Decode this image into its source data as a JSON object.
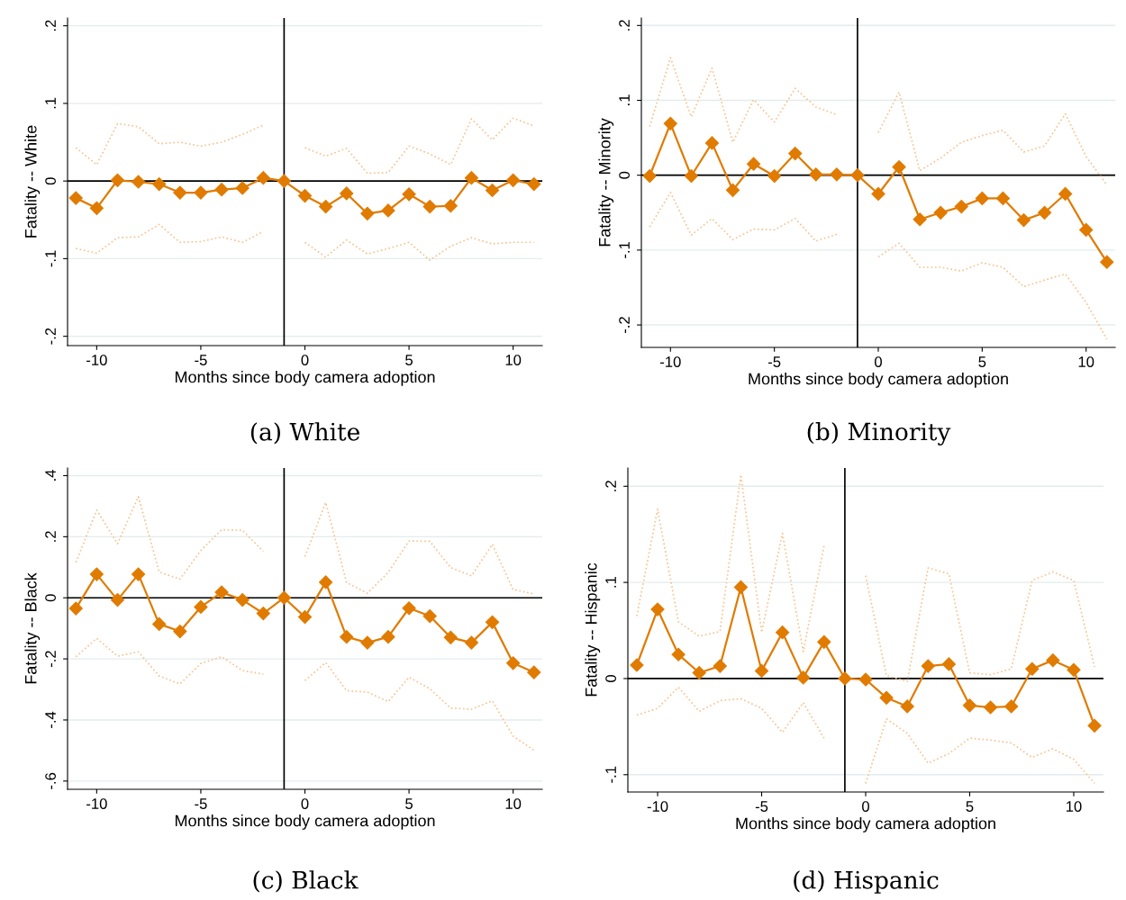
{
  "chart_data": [
    {
      "type": "line",
      "title": "(a) White",
      "xlabel": "Months since body camera adoption",
      "ylabel": "Fatality -- White",
      "x": [
        -11,
        -10,
        -9,
        -8,
        -7,
        -6,
        -5,
        -4,
        -3,
        -2,
        -1,
        0,
        1,
        2,
        3,
        4,
        5,
        6,
        7,
        8,
        9,
        10,
        11
      ],
      "series": [
        {
          "color": "#e07b00",
          "marker": "diamond",
          "line_style": "solid",
          "values": [
            -0.022,
            -0.035,
            0.001,
            -0.001,
            -0.004,
            -0.015,
            -0.015,
            -0.011,
            -0.009,
            0.004,
            0,
            -0.019,
            -0.033,
            -0.016,
            -0.042,
            -0.038,
            -0.017,
            -0.033,
            -0.032,
            0.004,
            -0.012,
            0.001,
            -0.004
          ]
        },
        {
          "color": "#f5c28e",
          "marker": "none",
          "line_style": "dotted",
          "values": [
            0.043,
            0.021,
            0.074,
            0.07,
            0.048,
            0.05,
            0.045,
            0.05,
            0.06,
            0.072,
            null,
            0.043,
            0.032,
            0.042,
            0.01,
            0.011,
            0.045,
            0.035,
            0.021,
            0.08,
            0.053,
            0.081,
            0.071
          ]
        },
        {
          "color": "#f5c28e",
          "marker": "none",
          "line_style": "dotted",
          "values": [
            -0.087,
            -0.093,
            -0.073,
            -0.072,
            -0.056,
            -0.079,
            -0.078,
            -0.072,
            -0.079,
            -0.065,
            null,
            -0.079,
            -0.098,
            -0.076,
            -0.094,
            -0.087,
            -0.079,
            -0.102,
            -0.084,
            -0.073,
            -0.081,
            -0.079,
            -0.079
          ]
        }
      ],
      "xlim": [
        -11.4,
        11.4
      ],
      "xticks": [
        -10,
        -5,
        0,
        5,
        10
      ],
      "ylim": [
        -0.212,
        0.21
      ],
      "yticks": [
        {
          "value": -0.2,
          "label": "-.2"
        },
        {
          "value": -0.1,
          "label": "-.1"
        },
        0,
        {
          "value": 0.1,
          "label": ".1"
        },
        {
          "value": 0.2,
          "label": ".2"
        }
      ],
      "ref_lines": [
        {
          "axis": "y",
          "value": 0,
          "color": "#000000"
        },
        {
          "axis": "x",
          "value": -1,
          "color": "#000000"
        }
      ],
      "grid": "y"
    },
    {
      "type": "line",
      "title": "(b) Minority",
      "xlabel": "Months since body camera adoption",
      "ylabel": "Fatality -- Minority",
      "x": [
        -11,
        -10,
        -9,
        -8,
        -7,
        -6,
        -5,
        -4,
        -3,
        -2,
        -1,
        0,
        1,
        2,
        3,
        4,
        5,
        6,
        7,
        8,
        9,
        10,
        11
      ],
      "series": [
        {
          "color": "#e07b00",
          "marker": "diamond",
          "line_style": "solid",
          "values": [
            -0.001,
            0.069,
            -0.001,
            0.043,
            -0.02,
            0.015,
            -0.001,
            0.029,
            0.001,
            0.001,
            0,
            -0.025,
            0.011,
            -0.059,
            -0.05,
            -0.042,
            -0.031,
            -0.031,
            -0.06,
            -0.05,
            -0.025,
            -0.073,
            -0.116
          ]
        },
        {
          "color": "#f5c28e",
          "marker": "none",
          "line_style": "dotted",
          "values": [
            0.065,
            0.157,
            0.078,
            0.143,
            0.044,
            0.101,
            0.071,
            0.116,
            0.091,
            0.081,
            null,
            0.057,
            0.111,
            0.006,
            0.023,
            0.044,
            0.053,
            0.06,
            0.031,
            0.039,
            0.082,
            0.025,
            -0.013
          ]
        },
        {
          "color": "#f5c28e",
          "marker": "none",
          "line_style": "dotted",
          "values": [
            -0.069,
            -0.023,
            -0.08,
            -0.058,
            -0.086,
            -0.072,
            -0.073,
            -0.058,
            -0.088,
            -0.079,
            null,
            -0.109,
            -0.091,
            -0.123,
            -0.123,
            -0.128,
            -0.117,
            -0.123,
            -0.149,
            -0.14,
            -0.132,
            -0.17,
            -0.219
          ]
        }
      ],
      "xlim": [
        -11.4,
        11.4
      ],
      "xticks": [
        -10,
        -5,
        0,
        5,
        10
      ],
      "ylim": [
        -0.23,
        0.21
      ],
      "yticks": [
        {
          "value": -0.2,
          "label": "-.2"
        },
        {
          "value": -0.1,
          "label": "-.1"
        },
        0,
        {
          "value": 0.1,
          "label": ".1"
        },
        {
          "value": 0.2,
          "label": ".2"
        }
      ],
      "ref_lines": [
        {
          "axis": "y",
          "value": 0,
          "color": "#000000"
        },
        {
          "axis": "x",
          "value": -1,
          "color": "#000000"
        }
      ],
      "grid": "y"
    },
    {
      "type": "line",
      "title": "(c) Black",
      "xlabel": "Months since body camera adoption",
      "ylabel": "Fatality -- Black",
      "x": [
        -11,
        -10,
        -9,
        -8,
        -7,
        -6,
        -5,
        -4,
        -3,
        -2,
        -1,
        0,
        1,
        2,
        3,
        4,
        5,
        6,
        7,
        8,
        9,
        10,
        11
      ],
      "series": [
        {
          "color": "#e07b00",
          "marker": "diamond",
          "line_style": "solid",
          "values": [
            -0.035,
            0.077,
            -0.007,
            0.077,
            -0.086,
            -0.11,
            -0.03,
            0.018,
            -0.007,
            -0.051,
            0,
            -0.063,
            0.051,
            -0.128,
            -0.147,
            -0.128,
            -0.034,
            -0.06,
            -0.13,
            -0.147,
            -0.08,
            -0.214,
            -0.244
          ]
        },
        {
          "color": "#f5c28e",
          "marker": "none",
          "line_style": "dotted",
          "values": [
            0.116,
            0.287,
            0.177,
            0.331,
            0.085,
            0.061,
            0.155,
            0.223,
            0.221,
            0.152,
            null,
            0.135,
            0.312,
            0.05,
            0.015,
            0.083,
            0.186,
            0.185,
            0.099,
            0.072,
            0.175,
            0.027,
            0.013
          ]
        },
        {
          "color": "#f5c28e",
          "marker": "none",
          "line_style": "dotted",
          "values": [
            -0.193,
            -0.133,
            -0.191,
            -0.177,
            -0.256,
            -0.282,
            -0.215,
            -0.193,
            -0.238,
            -0.25,
            null,
            -0.271,
            -0.212,
            -0.304,
            -0.309,
            -0.34,
            -0.26,
            -0.298,
            -0.361,
            -0.365,
            -0.337,
            -0.453,
            -0.499
          ]
        }
      ],
      "xlim": [
        -11.4,
        11.4
      ],
      "xticks": [
        -10,
        -5,
        0,
        5,
        10
      ],
      "ylim": [
        -0.627,
        0.425
      ],
      "yticks": [
        {
          "value": -0.6,
          "label": "-.6"
        },
        {
          "value": -0.4,
          "label": "-.4"
        },
        {
          "value": -0.2,
          "label": "-.2"
        },
        0,
        {
          "value": 0.2,
          "label": ".2"
        },
        {
          "value": 0.4,
          "label": ".4"
        }
      ],
      "ref_lines": [
        {
          "axis": "y",
          "value": 0,
          "color": "#000000"
        },
        {
          "axis": "x",
          "value": -1,
          "color": "#000000"
        }
      ],
      "grid": "y"
    },
    {
      "type": "line",
      "title": "(d) Hispanic",
      "xlabel": "Months since body camera adoption",
      "ylabel": "Fatality -- Hispanic",
      "x": [
        -11,
        -10,
        -9,
        -8,
        -7,
        -6,
        -5,
        -4,
        -3,
        -2,
        -1,
        0,
        1,
        2,
        3,
        4,
        5,
        6,
        7,
        8,
        9,
        10,
        11
      ],
      "series": [
        {
          "color": "#e07b00",
          "marker": "diamond",
          "line_style": "solid",
          "values": [
            0.014,
            0.072,
            0.025,
            0.006,
            0.013,
            0.095,
            0.008,
            0.048,
            0.001,
            0.038,
            0,
            -0.001,
            -0.02,
            -0.029,
            0.013,
            0.015,
            -0.028,
            -0.03,
            -0.029,
            0.01,
            0.019,
            0.009,
            -0.049
          ]
        },
        {
          "color": "#f5c28e",
          "marker": "none",
          "line_style": "dotted",
          "values": [
            0.065,
            0.176,
            0.059,
            0.044,
            0.049,
            0.212,
            0.048,
            0.151,
            0.028,
            0.138,
            null,
            0.107,
            0.003,
            -0.003,
            0.115,
            0.109,
            0.006,
            0.004,
            0.01,
            0.102,
            0.111,
            0.102,
            0.012
          ]
        },
        {
          "color": "#f5c28e",
          "marker": "none",
          "line_style": "dotted",
          "values": [
            -0.038,
            -0.031,
            -0.009,
            -0.034,
            -0.023,
            -0.021,
            -0.031,
            -0.056,
            -0.025,
            -0.062,
            null,
            -0.109,
            -0.042,
            -0.057,
            -0.088,
            -0.078,
            -0.062,
            -0.064,
            -0.067,
            -0.082,
            -0.073,
            -0.084,
            -0.109
          ]
        }
      ],
      "xlim": [
        -11.43,
        11.43
      ],
      "xticks": [
        -10,
        -5,
        0,
        5,
        10
      ],
      "ylim": [
        -0.118,
        0.219
      ],
      "yticks": [
        {
          "value": -0.1,
          "label": "-.1"
        },
        0,
        {
          "value": 0.1,
          "label": ".1"
        },
        {
          "value": 0.2,
          "label": ".2"
        }
      ],
      "ref_lines": [
        {
          "axis": "y",
          "value": 0,
          "color": "#000000"
        },
        {
          "axis": "x",
          "value": -1,
          "color": "#000000"
        }
      ],
      "grid": "y"
    }
  ]
}
